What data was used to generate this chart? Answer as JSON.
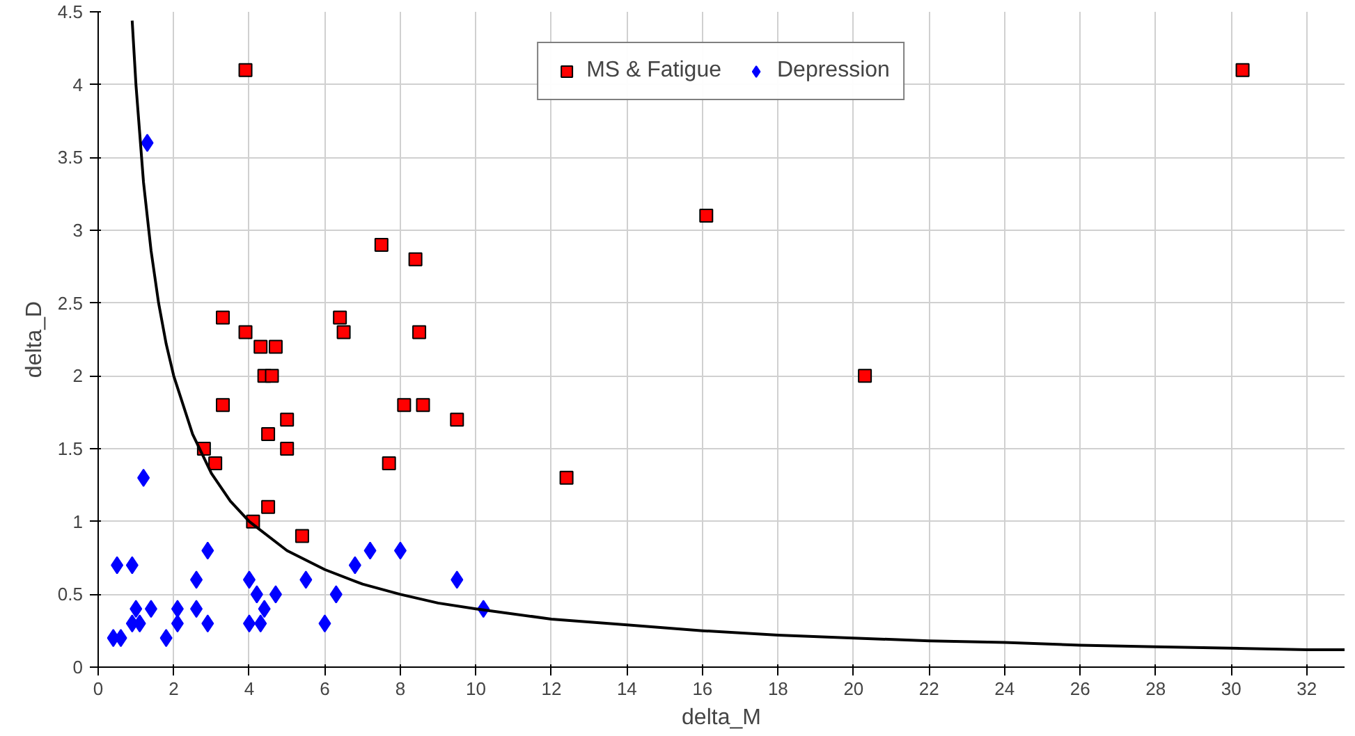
{
  "chart_data": {
    "type": "scatter",
    "xlabel": "delta_M",
    "ylabel": "delta_D",
    "xlim": [
      0,
      33
    ],
    "ylim": [
      0,
      4.5
    ],
    "xticks": [
      0,
      2,
      4,
      6,
      8,
      10,
      12,
      14,
      16,
      18,
      20,
      22,
      24,
      26,
      28,
      30,
      32
    ],
    "yticks": [
      0,
      0.5,
      1,
      1.5,
      2,
      2.5,
      3,
      3.5,
      4,
      4.5
    ],
    "grid": true,
    "legend": "top",
    "series": [
      {
        "name": "MS & Fatigue",
        "color": "#ff0000",
        "marker": "square",
        "x": [
          3.9,
          30.3,
          16.1,
          7.5,
          8.4,
          3.3,
          6.4,
          3.9,
          6.5,
          8.5,
          4.3,
          4.7,
          4.4,
          4.6,
          20.3,
          3.3,
          8.1,
          8.6,
          5.0,
          9.5,
          4.5,
          2.8,
          5.0,
          3.1,
          7.7,
          12.4,
          4.5,
          4.1,
          5.4
        ],
        "values": [
          4.1,
          4.1,
          3.1,
          2.9,
          2.8,
          2.4,
          2.4,
          2.3,
          2.3,
          2.3,
          2.2,
          2.2,
          2.0,
          2.0,
          2.0,
          1.8,
          1.8,
          1.8,
          1.7,
          1.7,
          1.6,
          1.5,
          1.5,
          1.4,
          1.4,
          1.3,
          1.1,
          1.0,
          0.9
        ]
      },
      {
        "name": "Depression",
        "color": "#0000ff",
        "marker": "diamond",
        "x": [
          1.3,
          1.2,
          0.5,
          0.9,
          2.9,
          7.2,
          8.0,
          6.8,
          2.6,
          4.0,
          5.5,
          9.5,
          4.2,
          4.7,
          6.3,
          1.0,
          1.4,
          2.1,
          2.6,
          4.4,
          10.2,
          0.9,
          1.1,
          2.1,
          2.9,
          4.0,
          4.3,
          6.0,
          0.4,
          0.6,
          1.8
        ],
        "values": [
          3.6,
          1.3,
          0.7,
          0.7,
          0.8,
          0.8,
          0.8,
          0.7,
          0.6,
          0.6,
          0.6,
          0.6,
          0.5,
          0.5,
          0.5,
          0.4,
          0.4,
          0.4,
          0.4,
          0.4,
          0.4,
          0.3,
          0.3,
          0.3,
          0.3,
          0.3,
          0.3,
          0.3,
          0.2,
          0.2,
          0.2
        ]
      },
      {
        "type": "line",
        "color": "#000000",
        "x": [
          0.9,
          1,
          1.2,
          1.4,
          1.6,
          1.8,
          2,
          2.5,
          3,
          3.5,
          4,
          5,
          6,
          7,
          8,
          9,
          10,
          12,
          14,
          16,
          18,
          20,
          22,
          24,
          26,
          28,
          30,
          32,
          33
        ],
        "values": [
          4.44,
          4,
          3.33,
          2.86,
          2.5,
          2.22,
          2,
          1.6,
          1.33,
          1.14,
          1,
          0.8,
          0.67,
          0.57,
          0.5,
          0.44,
          0.4,
          0.33,
          0.29,
          0.25,
          0.22,
          0.2,
          0.18,
          0.17,
          0.15,
          0.14,
          0.13,
          0.12,
          0.12
        ]
      }
    ]
  }
}
